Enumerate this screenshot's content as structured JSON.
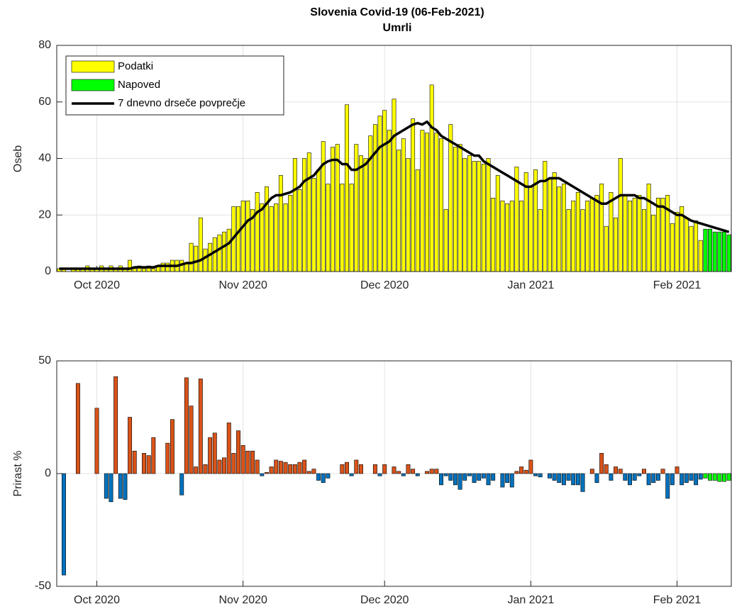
{
  "chart_data": [
    {
      "type": "bar",
      "title": "Slovenia Covid-19 (06-Feb-2021)",
      "subtitle": "Umrli",
      "ylabel": "Oseb",
      "categories": [
        null,
        null,
        null,
        null,
        null,
        null,
        null,
        null,
        "Oct 2020",
        null,
        null,
        null,
        null,
        null,
        null,
        null,
        null,
        null,
        null,
        null,
        null,
        null,
        null,
        null,
        null,
        null,
        null,
        null,
        null,
        null,
        null,
        null,
        null,
        null,
        null,
        null,
        null,
        null,
        null,
        "Nov 2020",
        null,
        null,
        null,
        null,
        null,
        null,
        null,
        null,
        null,
        null,
        null,
        null,
        null,
        null,
        null,
        null,
        null,
        null,
        null,
        null,
        null,
        null,
        null,
        null,
        null,
        null,
        null,
        null,
        null,
        "Dec 2020",
        null,
        null,
        null,
        null,
        null,
        null,
        null,
        null,
        null,
        null,
        null,
        null,
        null,
        null,
        null,
        null,
        null,
        null,
        null,
        null,
        null,
        null,
        null,
        null,
        null,
        null,
        null,
        null,
        null,
        null,
        "Jan 2021",
        null,
        null,
        null,
        null,
        null,
        null,
        null,
        null,
        null,
        null,
        null,
        null,
        null,
        null,
        null,
        null,
        null,
        null,
        null,
        null,
        null,
        null,
        null,
        null,
        null,
        null,
        null,
        null,
        null,
        null,
        "Feb 2021",
        null,
        null,
        null,
        null,
        null,
        null,
        null,
        null,
        null,
        null,
        null
      ],
      "series": [
        {
          "name": "Podatki",
          "color": "#ffff00",
          "values": [
            1,
            1,
            0,
            1,
            1,
            1,
            2,
            1,
            1,
            2,
            1,
            2,
            1,
            2,
            1,
            4,
            1,
            2,
            1,
            2,
            1,
            2,
            3,
            3,
            4,
            4,
            4,
            3,
            10,
            9,
            19,
            8,
            10,
            12,
            13,
            14,
            15,
            23,
            23,
            25,
            25,
            22,
            28,
            24,
            30,
            23,
            24,
            34,
            24,
            27,
            40,
            29,
            40,
            42,
            33,
            36,
            46,
            31,
            44,
            45,
            31,
            59,
            31,
            45,
            41,
            40,
            48,
            52,
            55,
            57,
            50,
            61,
            43,
            47,
            40,
            54,
            36,
            50,
            49,
            66,
            49,
            47,
            22,
            52,
            44,
            45,
            40,
            41,
            39,
            39,
            38,
            40,
            26,
            34,
            25,
            24,
            25,
            37,
            25,
            35,
            30,
            36,
            22,
            39,
            33,
            35,
            30,
            31,
            22,
            25,
            28,
            22,
            25,
            26,
            27,
            31,
            16,
            28,
            19,
            40,
            27,
            25,
            26,
            27,
            22,
            31,
            20,
            26,
            26,
            27,
            17,
            21,
            23,
            19,
            16,
            18,
            11,
            null,
            null,
            null,
            null,
            null,
            null
          ]
        },
        {
          "name": "Napoved",
          "color": "#00ff00",
          "values": [
            null,
            null,
            null,
            null,
            null,
            null,
            null,
            null,
            null,
            null,
            null,
            null,
            null,
            null,
            null,
            null,
            null,
            null,
            null,
            null,
            null,
            null,
            null,
            null,
            null,
            null,
            null,
            null,
            null,
            null,
            null,
            null,
            null,
            null,
            null,
            null,
            null,
            null,
            null,
            null,
            null,
            null,
            null,
            null,
            null,
            null,
            null,
            null,
            null,
            null,
            null,
            null,
            null,
            null,
            null,
            null,
            null,
            null,
            null,
            null,
            null,
            null,
            null,
            null,
            null,
            null,
            null,
            null,
            null,
            null,
            null,
            null,
            null,
            null,
            null,
            null,
            null,
            null,
            null,
            null,
            null,
            null,
            null,
            null,
            null,
            null,
            null,
            null,
            null,
            null,
            null,
            null,
            null,
            null,
            null,
            null,
            null,
            null,
            null,
            null,
            null,
            null,
            null,
            null,
            null,
            null,
            null,
            null,
            null,
            null,
            null,
            null,
            null,
            null,
            null,
            null,
            null,
            null,
            null,
            null,
            null,
            null,
            null,
            null,
            null,
            null,
            null,
            null,
            null,
            null,
            null,
            null,
            null,
            null,
            null,
            null,
            null,
            15,
            15,
            14,
            14,
            14,
            13
          ]
        },
        {
          "name": "7 dnevno drseče povprečje",
          "type": "line",
          "color": "#000000",
          "values": [
            1,
            1,
            1,
            1,
            1,
            1,
            1,
            1,
            1,
            1,
            1,
            1,
            1,
            1,
            1,
            1,
            1.5,
            1.5,
            1.5,
            1.5,
            1.5,
            2,
            2,
            2,
            2,
            2,
            2.5,
            3,
            3,
            3.5,
            4,
            5,
            6,
            7,
            8,
            9,
            10,
            12,
            14,
            16,
            18,
            19,
            21,
            22,
            24,
            26,
            27,
            27,
            27.5,
            28,
            29,
            30,
            32,
            33,
            34,
            36,
            38,
            39,
            39.5,
            39.5,
            38,
            38,
            36,
            36,
            37,
            38,
            40,
            42,
            44,
            45,
            46,
            48,
            49,
            50,
            51,
            52,
            52.5,
            52,
            53,
            51,
            50,
            48,
            47,
            46,
            45,
            44,
            43,
            42,
            41,
            41,
            39,
            38,
            37,
            36,
            35,
            34,
            33,
            32,
            31,
            30,
            30,
            31,
            32,
            32,
            33,
            33,
            33,
            32,
            31,
            30,
            29,
            28,
            27,
            26,
            25,
            24,
            24,
            25,
            26,
            27,
            27,
            27,
            27,
            26,
            26,
            25,
            24,
            23,
            23,
            22,
            21,
            20,
            20,
            19,
            18,
            17.5,
            17,
            16.5,
            16,
            15.5,
            15,
            14.5,
            14
          ]
        }
      ],
      "ylim": [
        0,
        80
      ],
      "yticks": [
        0,
        20,
        40,
        60,
        80
      ],
      "grid": true,
      "legend": "northwest"
    },
    {
      "type": "bar",
      "ylabel": "Prirast %",
      "categories": [
        null,
        null,
        null,
        null,
        null,
        null,
        null,
        null,
        "Oct 2020",
        null,
        null,
        null,
        null,
        null,
        null,
        null,
        null,
        null,
        null,
        null,
        null,
        null,
        null,
        null,
        null,
        null,
        null,
        null,
        null,
        null,
        null,
        null,
        null,
        null,
        null,
        null,
        null,
        null,
        null,
        "Nov 2020",
        null,
        null,
        null,
        null,
        null,
        null,
        null,
        null,
        null,
        null,
        null,
        null,
        null,
        null,
        null,
        null,
        null,
        null,
        null,
        null,
        null,
        null,
        null,
        null,
        null,
        null,
        null,
        null,
        null,
        "Dec 2020",
        null,
        null,
        null,
        null,
        null,
        null,
        null,
        null,
        null,
        null,
        null,
        null,
        null,
        null,
        null,
        null,
        null,
        null,
        null,
        null,
        null,
        null,
        null,
        null,
        null,
        null,
        null,
        null,
        null,
        null,
        "Jan 2021",
        null,
        null,
        null,
        null,
        null,
        null,
        null,
        null,
        null,
        null,
        null,
        null,
        null,
        null,
        null,
        null,
        null,
        null,
        null,
        null,
        null,
        null,
        null,
        null,
        null,
        null,
        null,
        null,
        null,
        null,
        "Feb 2021",
        null,
        null,
        null,
        null,
        null,
        null,
        null,
        null,
        null,
        null,
        null
      ],
      "series": [
        {
          "color_positive": "#d95319",
          "color_negative": "#0072bd",
          "values": [
            0,
            -45,
            0,
            0,
            40,
            0,
            0,
            0,
            29,
            0,
            -11,
            -12.5,
            43,
            -11,
            -11.5,
            25,
            10,
            0,
            9,
            8,
            16,
            0,
            0,
            13.5,
            24,
            0,
            -9.5,
            42.5,
            30,
            3,
            42,
            4,
            16,
            18,
            6,
            7,
            22.5,
            9,
            19,
            12.5,
            10,
            10,
            6,
            -1,
            0.5,
            3,
            6,
            5.5,
            5,
            4,
            4,
            5,
            6,
            1,
            2,
            -3,
            -4,
            -2,
            0,
            0,
            4,
            5,
            -1,
            6,
            4,
            0,
            0,
            4,
            -1,
            4,
            0,
            3,
            1,
            -1,
            4,
            2,
            -1,
            0,
            1,
            2,
            2,
            -5,
            -1,
            -3,
            -5,
            -7,
            -3,
            -1,
            -4,
            -3,
            -2,
            -5,
            -3,
            0,
            -6,
            -4,
            -6,
            1,
            3,
            1.5,
            6,
            -1,
            -1.5,
            0,
            -2,
            -3,
            -4,
            -5,
            -3,
            -5,
            -5,
            -8,
            0,
            2,
            -4,
            9,
            4,
            -3,
            3,
            2,
            -3,
            -5,
            -3,
            -1,
            2,
            -5,
            -4,
            -3,
            2,
            -11,
            -5,
            3,
            -5,
            -4,
            -3,
            -5,
            -2.5,
            null,
            null,
            null,
            null,
            null,
            null
          ]
        },
        {
          "color": "#00ff00",
          "values": [
            null,
            null,
            null,
            null,
            null,
            null,
            null,
            null,
            null,
            null,
            null,
            null,
            null,
            null,
            null,
            null,
            null,
            null,
            null,
            null,
            null,
            null,
            null,
            null,
            null,
            null,
            null,
            null,
            null,
            null,
            null,
            null,
            null,
            null,
            null,
            null,
            null,
            null,
            null,
            null,
            null,
            null,
            null,
            null,
            null,
            null,
            null,
            null,
            null,
            null,
            null,
            null,
            null,
            null,
            null,
            null,
            null,
            null,
            null,
            null,
            null,
            null,
            null,
            null,
            null,
            null,
            null,
            null,
            null,
            null,
            null,
            null,
            null,
            null,
            null,
            null,
            null,
            null,
            null,
            null,
            null,
            null,
            null,
            null,
            null,
            null,
            null,
            null,
            null,
            null,
            null,
            null,
            null,
            null,
            null,
            null,
            null,
            null,
            null,
            null,
            null,
            null,
            null,
            null,
            null,
            null,
            null,
            null,
            null,
            null,
            null,
            null,
            null,
            null,
            null,
            null,
            null,
            null,
            null,
            null,
            null,
            null,
            null,
            null,
            null,
            null,
            null,
            null,
            null,
            null,
            null,
            null,
            null,
            null,
            null,
            null,
            null,
            -2,
            -3,
            -3,
            -3.5,
            -3.5,
            -3
          ]
        }
      ],
      "ylim": [
        -50,
        50
      ],
      "yticks": [
        -50,
        0,
        50
      ],
      "grid": true
    }
  ]
}
